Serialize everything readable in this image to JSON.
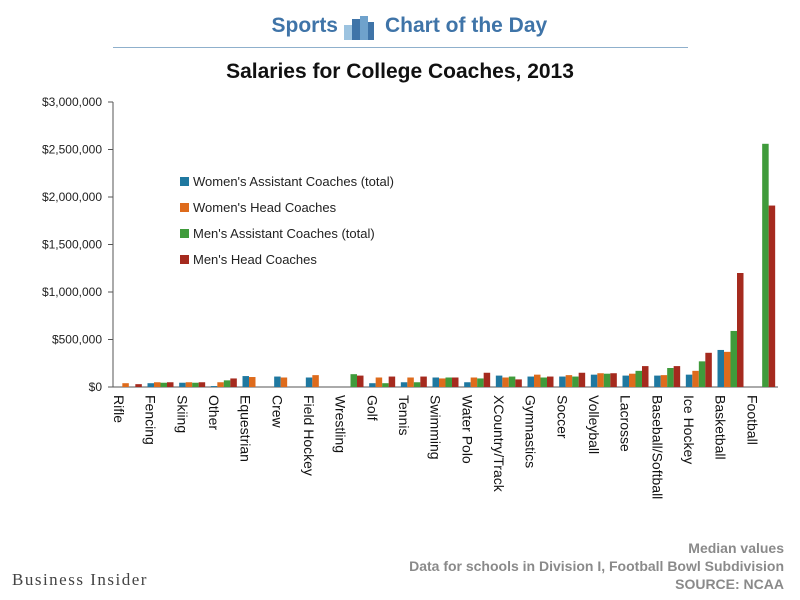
{
  "header": {
    "left": "Sports",
    "right": "Chart of the Day",
    "logo_icon": "bar-chart-icon"
  },
  "chart_data": {
    "type": "bar",
    "title": "Salaries for College Coaches, 2013",
    "xlabel": "",
    "ylabel": "",
    "ylim": [
      0,
      3000000
    ],
    "yticks": [
      {
        "value": 0,
        "label": "$0"
      },
      {
        "value": 500000,
        "label": "$500,000"
      },
      {
        "value": 1000000,
        "label": "$1,000,000"
      },
      {
        "value": 1500000,
        "label": "$1,500,000"
      },
      {
        "value": 2000000,
        "label": "$2,000,000"
      },
      {
        "value": 2500000,
        "label": "$2,500,000"
      },
      {
        "value": 3000000,
        "label": "$3,000,000"
      }
    ],
    "grid": false,
    "legend_position": "upper-left",
    "categories": [
      "Rifle",
      "Fencing",
      "Skiing",
      "Other",
      "Equestrian",
      "Crew",
      "Field Hockey",
      "Wrestling",
      "Golf",
      "Tennis",
      "Swimming",
      "Water Polo",
      "XCountry/Track",
      "Gymnastics",
      "Soccer",
      "Volleyball",
      "Lacrosse",
      "Baseball/Softball",
      "Ice Hockey",
      "Basketball",
      "Football"
    ],
    "series": [
      {
        "name": "Women's Assistant Coaches (total)",
        "color": "#1f78a0",
        "values": [
          null,
          40000,
          45000,
          10000,
          115000,
          110000,
          100000,
          null,
          40000,
          50000,
          100000,
          50000,
          120000,
          110000,
          110000,
          130000,
          120000,
          120000,
          130000,
          390000,
          null
        ]
      },
      {
        "name": "Women's Head Coaches",
        "color": "#de6b1c",
        "values": [
          40000,
          50000,
          50000,
          50000,
          105000,
          100000,
          125000,
          null,
          100000,
          100000,
          90000,
          100000,
          100000,
          130000,
          125000,
          145000,
          140000,
          125000,
          170000,
          370000,
          null
        ]
      },
      {
        "name": "Men's Assistant Coaches (total)",
        "color": "#3f9b3b",
        "values": [
          null,
          45000,
          45000,
          70000,
          null,
          null,
          null,
          135000,
          40000,
          50000,
          100000,
          90000,
          110000,
          100000,
          110000,
          140000,
          170000,
          200000,
          270000,
          590000,
          2560000
        ]
      },
      {
        "name": "Men's Head Coaches",
        "color": "#a52a1e",
        "values": [
          30000,
          50000,
          50000,
          90000,
          null,
          null,
          null,
          120000,
          110000,
          110000,
          100000,
          150000,
          80000,
          110000,
          150000,
          145000,
          220000,
          220000,
          360000,
          1200000,
          1910000
        ]
      }
    ]
  },
  "footer": {
    "brand": "Business Insider",
    "note1": "Median values",
    "note2": "Data for schools in Division I, Football Bowl Subdivision",
    "source": "SOURCE: NCAA"
  }
}
